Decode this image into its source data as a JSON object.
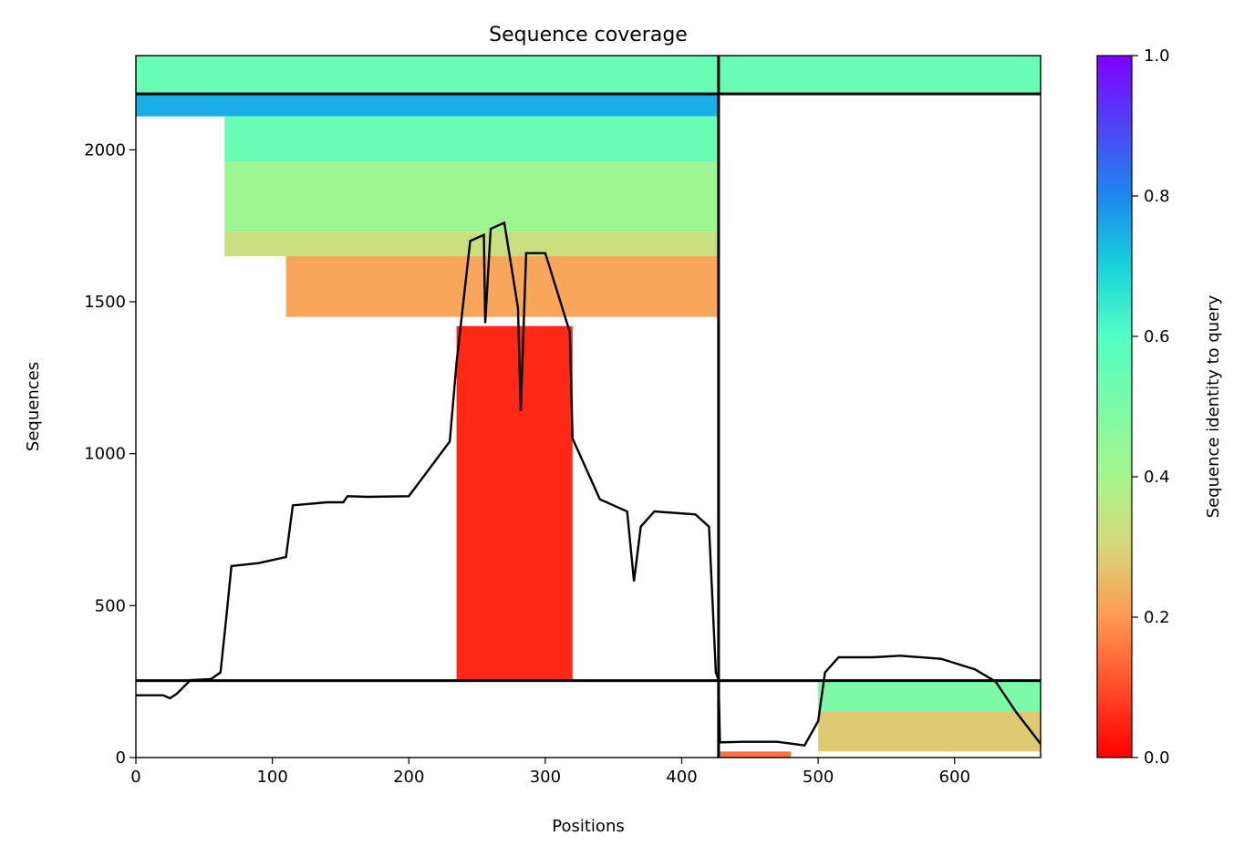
{
  "chart_data": {
    "type": "heatmap",
    "title": "Sequence coverage",
    "xlabel": "Positions",
    "ylabel": "Sequences",
    "xlim": [
      0,
      663
    ],
    "ylim": [
      0,
      2310
    ],
    "xticks": [
      0,
      100,
      200,
      300,
      400,
      500,
      600
    ],
    "yticks": [
      0,
      500,
      1000,
      1500,
      2000
    ],
    "colorbar": {
      "label": "Sequence identity to query",
      "range": [
        0.0,
        1.0
      ],
      "ticks": [
        "0.0",
        "0.2",
        "0.4",
        "0.6",
        "0.8",
        "1.0"
      ],
      "colormap": "rainbow_r"
    },
    "domain_boundaries": {
      "position": 427,
      "sequences": [
        253,
        2184
      ]
    },
    "coverage_blocks": [
      {
        "x0": 0,
        "x1": 427,
        "y0": 2184,
        "y1": 2310,
        "identity": 0.55
      },
      {
        "x0": 0,
        "x1": 427,
        "y0": 2110,
        "y1": 2184,
        "identity": 0.75
      },
      {
        "x0": 65,
        "x1": 427,
        "y0": 1960,
        "y1": 2110,
        "identity": 0.55
      },
      {
        "x0": 65,
        "x1": 427,
        "y0": 1730,
        "y1": 1960,
        "identity": 0.42
      },
      {
        "x0": 65,
        "x1": 427,
        "y0": 1650,
        "y1": 1730,
        "identity": 0.33
      },
      {
        "x0": 110,
        "x1": 427,
        "y0": 1450,
        "y1": 1650,
        "identity": 0.22
      },
      {
        "x0": 235,
        "x1": 320,
        "y0": 253,
        "y1": 1420,
        "identity": 0.05
      },
      {
        "x0": 427,
        "x1": 663,
        "y0": 2184,
        "y1": 2310,
        "identity": 0.55
      },
      {
        "x0": 500,
        "x1": 663,
        "y0": 150,
        "y1": 253,
        "identity": 0.5
      },
      {
        "x0": 500,
        "x1": 663,
        "y0": 20,
        "y1": 150,
        "identity": 0.28
      },
      {
        "x0": 427,
        "x1": 480,
        "y0": 0,
        "y1": 20,
        "identity": 0.15
      }
    ],
    "coverage_line": {
      "x": [
        0,
        20,
        25,
        30,
        40,
        55,
        62,
        66,
        70,
        90,
        110,
        115,
        140,
        152,
        155,
        170,
        200,
        230,
        235,
        245,
        255,
        256,
        260,
        270,
        280,
        282,
        286,
        300,
        318,
        320,
        340,
        355,
        360,
        365,
        370,
        380,
        410,
        420,
        425,
        427,
        428,
        445,
        470,
        490,
        500,
        505,
        515,
        540,
        560,
        590,
        615,
        630,
        645,
        663
      ],
      "y": [
        205,
        205,
        195,
        210,
        255,
        258,
        280,
        450,
        630,
        640,
        660,
        830,
        840,
        840,
        860,
        858,
        860,
        1040,
        1300,
        1700,
        1720,
        1430,
        1740,
        1760,
        1480,
        1140,
        1660,
        1660,
        1400,
        1050,
        850,
        820,
        810,
        580,
        760,
        810,
        800,
        760,
        280,
        255,
        50,
        52,
        52,
        40,
        120,
        280,
        330,
        330,
        335,
        325,
        290,
        250,
        150,
        45
      ]
    }
  }
}
